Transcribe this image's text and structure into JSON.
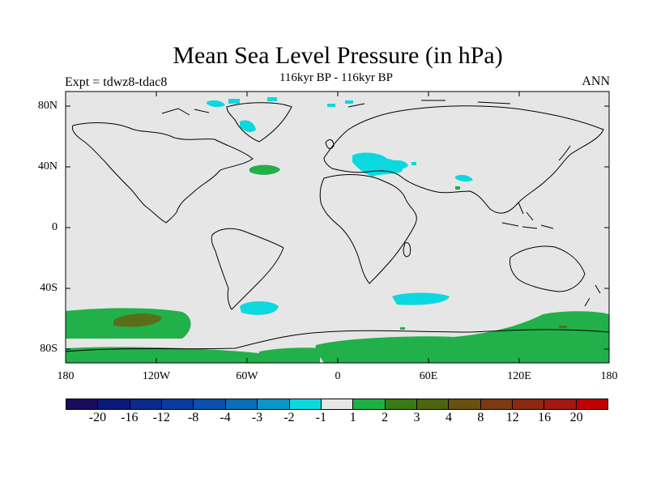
{
  "title": "Mean Sea Level Pressure (in hPa)",
  "subtitle": "116kyr BP - 116kyr BP",
  "left_label": "Expt = tdwz8-tdac8",
  "right_label": "ANN",
  "y_ticks": [
    "80N",
    "40N",
    "0",
    "40S",
    "80S"
  ],
  "x_ticks": [
    "180",
    "120W",
    "60W",
    "0",
    "60E",
    "120E",
    "180"
  ],
  "colorbar": {
    "colors": [
      "#1a0a5e",
      "#0a1a7a",
      "#0a2a8c",
      "#0a3c9c",
      "#0a50aa",
      "#0a6eb8",
      "#0a96c8",
      "#0cd8e0",
      "#e6e6e6",
      "#1eb043",
      "#3a7a14",
      "#4f6410",
      "#6a5010",
      "#7d3a10",
      "#8c2810",
      "#a01810",
      "#c00000"
    ],
    "labels": [
      "-20",
      "-16",
      "-12",
      "-8",
      "-4",
      "-3",
      "-2",
      "-1",
      "1",
      "2",
      "3",
      "4",
      "8",
      "12",
      "16",
      "20"
    ]
  },
  "colors": {
    "ocean_bg": "#e6e6e6",
    "positive_fill": "#22b04a",
    "strong_positive_fill": "#5a6e1a",
    "negative_fill": "#0cd8e0"
  }
}
